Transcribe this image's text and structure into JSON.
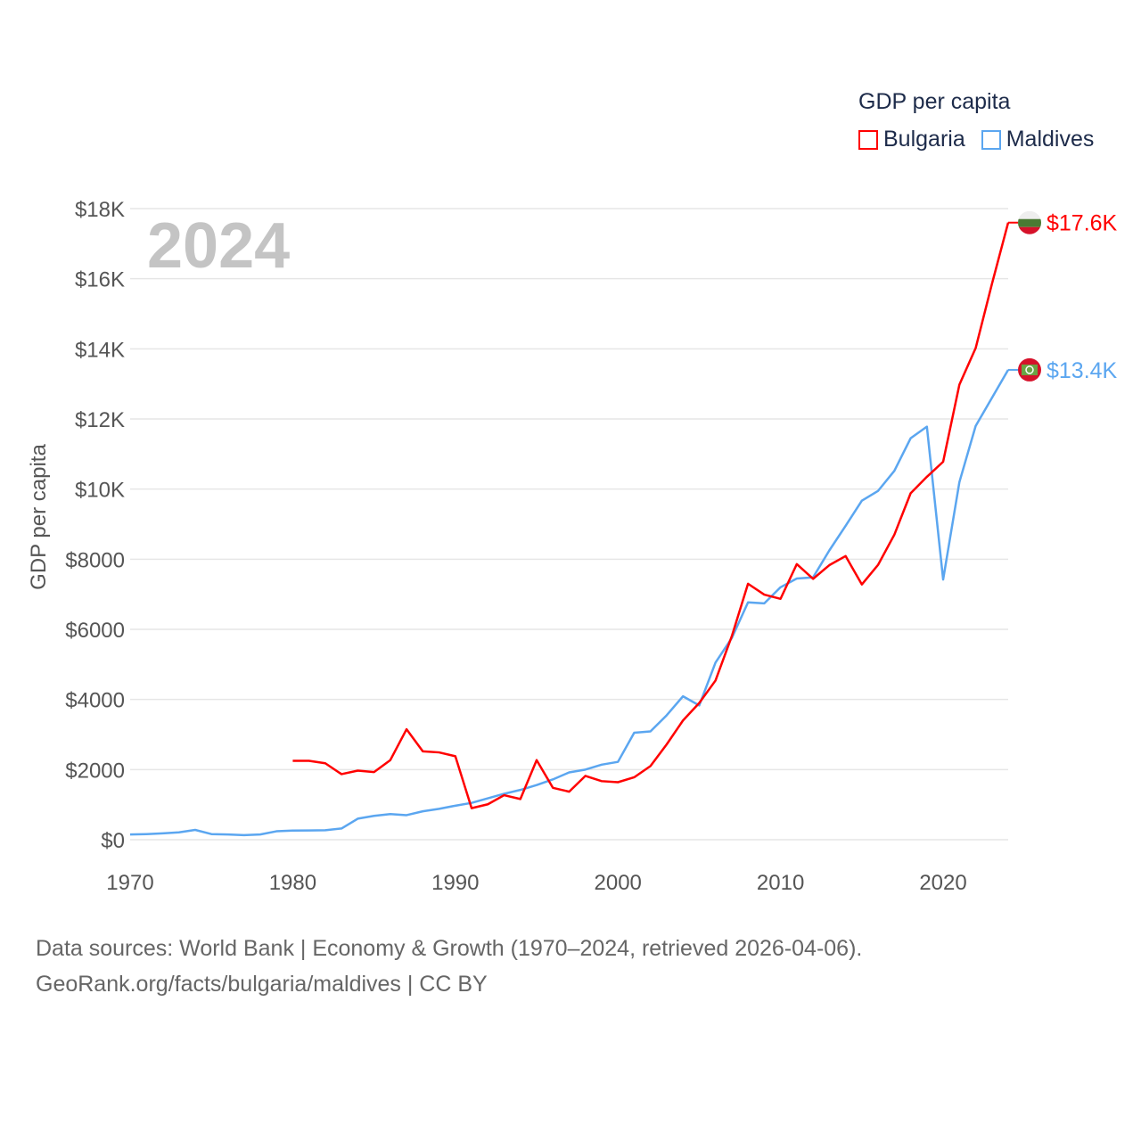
{
  "legend": {
    "title": "GDP per capita",
    "items": [
      {
        "label": "Bulgaria",
        "color": "#ff0000"
      },
      {
        "label": "Maldives",
        "color": "#5ba6f0"
      }
    ]
  },
  "year_label": "2024",
  "footer": {
    "line1": "Data sources: World Bank | Economy & Growth (1970–2024, retrieved 2026-04-06).",
    "line2": "GeoRank.org/facts/bulgaria/maldives | CC BY"
  },
  "chart_data": {
    "type": "line",
    "title": "GDP per capita",
    "xlabel": "",
    "ylabel": "GDP per capita",
    "xlim": [
      1970,
      2024
    ],
    "ylim": [
      0,
      18000
    ],
    "xticks": [
      1970,
      1980,
      1990,
      2000,
      2010,
      2020
    ],
    "xtick_labels": [
      "1970",
      "1980",
      "1990",
      "2000",
      "2010",
      "2020"
    ],
    "yticks": [
      0,
      2000,
      4000,
      6000,
      8000,
      10000,
      12000,
      14000,
      16000,
      18000
    ],
    "ytick_labels": [
      "$0",
      "$2000",
      "$4000",
      "$6000",
      "$8000",
      "$10K",
      "$12K",
      "$14K",
      "$16K",
      "$18K"
    ],
    "grid": true,
    "legend_position": "top-right",
    "series": [
      {
        "name": "Bulgaria",
        "color": "#ff0000",
        "start_year": 1980,
        "end_label": "$17.6K",
        "values": [
          2250,
          2250,
          2180,
          1870,
          1970,
          1930,
          2270,
          3150,
          2520,
          2490,
          2380,
          900,
          1010,
          1270,
          1160,
          2270,
          1480,
          1370,
          1820,
          1670,
          1640,
          1780,
          2100,
          2720,
          3400,
          3900,
          4540,
          5800,
          7300,
          6990,
          6870,
          7860,
          7440,
          7830,
          8090,
          7280,
          7840,
          8700,
          9880,
          10350,
          10780,
          12980,
          14020,
          15850,
          17600
        ]
      },
      {
        "name": "Maldives",
        "color": "#5ba6f0",
        "start_year": 1970,
        "end_label": "$13.4K",
        "values": [
          150,
          160,
          180,
          210,
          280,
          160,
          150,
          130,
          150,
          240,
          260,
          265,
          270,
          320,
          600,
          680,
          730,
          700,
          810,
          880,
          970,
          1050,
          1180,
          1310,
          1420,
          1560,
          1720,
          1920,
          2000,
          2140,
          2220,
          3050,
          3090,
          3550,
          4090,
          3830,
          5050,
          5750,
          6770,
          6740,
          7200,
          7450,
          7480,
          8250,
          8950,
          9670,
          9950,
          10520,
          11450,
          11780,
          7420,
          10200,
          11800,
          12600,
          13400
        ]
      }
    ]
  }
}
